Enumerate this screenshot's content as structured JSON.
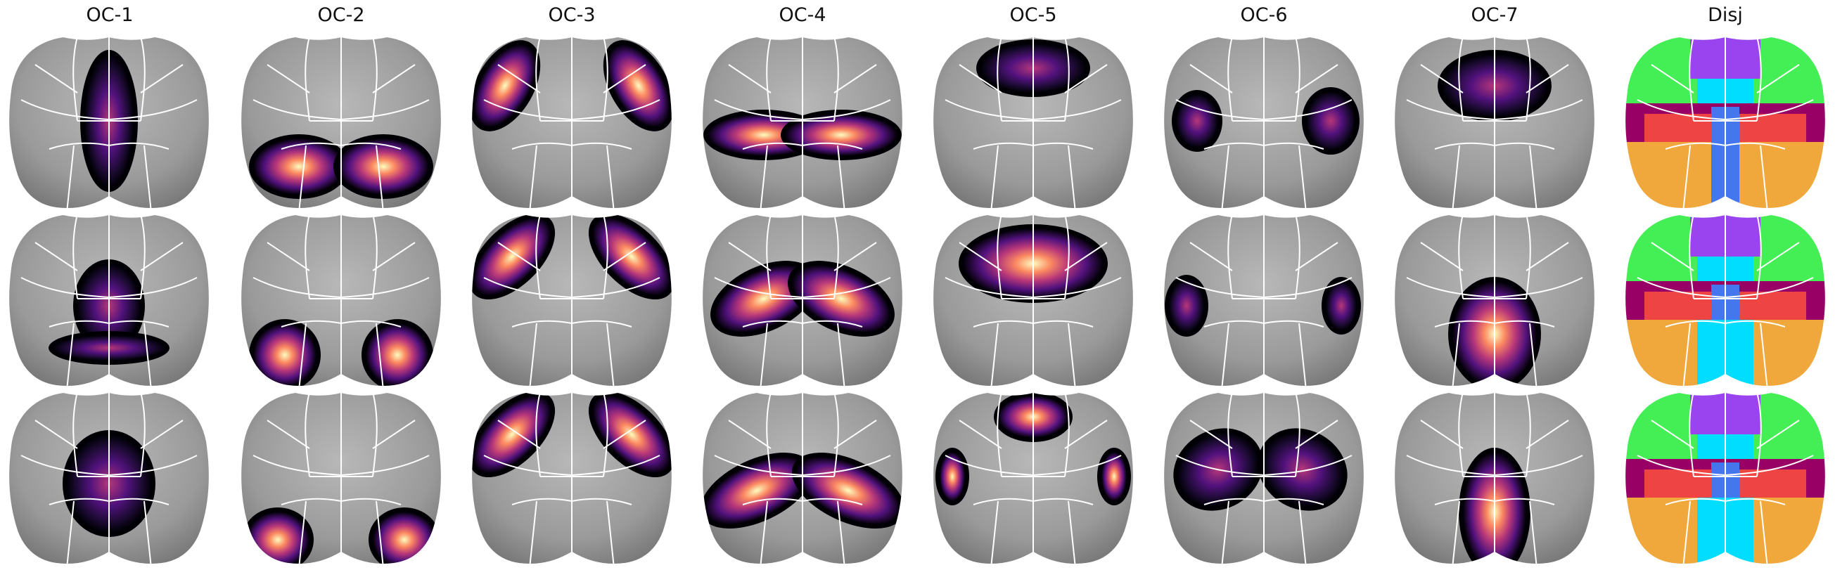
{
  "columns": [
    {
      "title": "OC-1"
    },
    {
      "title": "OC-2"
    },
    {
      "title": "OC-3"
    },
    {
      "title": "OC-4"
    },
    {
      "title": "OC-5"
    },
    {
      "title": "OC-6"
    },
    {
      "title": "OC-7"
    },
    {
      "title": "Disj"
    }
  ],
  "colors": {
    "cortex_gray": "#9a9a9a",
    "region_boundary": "#ffffff",
    "magma_dark": "#000004",
    "magma_purple": "#51127c",
    "magma_magenta": "#b73779",
    "magma_orange": "#fc8961",
    "magma_light": "#fcfdbf",
    "disjoint_green": "#44ee55",
    "disjoint_violet": "#9944ee",
    "disjoint_cyan": "#00ddff",
    "disjoint_red": "#ee4444",
    "disjoint_maroon": "#990066",
    "disjoint_orange": "#f0a83c",
    "disjoint_blue": "#4477ee"
  }
}
